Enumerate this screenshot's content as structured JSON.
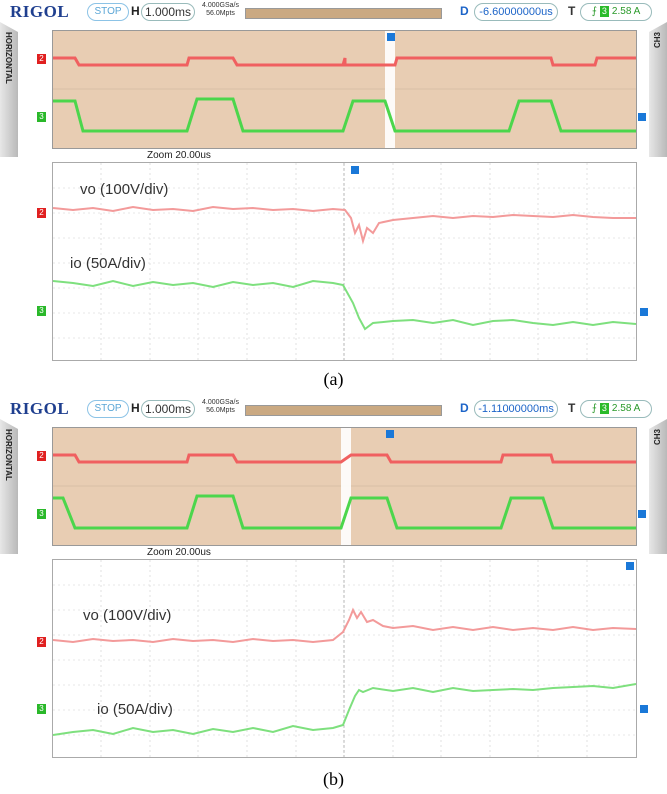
{
  "panels": [
    {
      "brand": "RIGOL",
      "run_state": "STOP",
      "h_label": "H",
      "timebase": "1.000ms",
      "sample_rate": "4.000GSa/s",
      "mem_depth": "56.0Mpts",
      "delay_label": "D",
      "delay": "-6.60000000us",
      "trigger_label": "T",
      "trigger_channel": "3",
      "trigger_level": "2.58 A",
      "side_left": "HORIZONTAL",
      "side_right": "CH3",
      "zoom_label": "Zoom  20.00us",
      "annotation_vo": "vo (100V/div)",
      "annotation_io": "io (50A/div)",
      "caption": "(a)",
      "ch2": "2",
      "ch3": "3",
      "trig_marker": "T",
      "response": "voltage dip, current drop"
    },
    {
      "brand": "RIGOL",
      "run_state": "STOP",
      "h_label": "H",
      "timebase": "1.000ms",
      "sample_rate": "4.000GSa/s",
      "mem_depth": "56.0Mpts",
      "delay_label": "D",
      "delay": "-1.11000000ms",
      "trigger_label": "T",
      "trigger_channel": "3",
      "trigger_level": "2.58 A",
      "side_left": "HORIZONTAL",
      "side_right": "CH3",
      "zoom_label": "Zoom  20.00us",
      "annotation_vo": "vo (100V/div)",
      "annotation_io": "io (50A/div)",
      "caption": "(b)",
      "ch2": "2",
      "ch3": "3",
      "trig_marker": "T",
      "response": "voltage overshoot, current rise"
    }
  ],
  "colors": {
    "voltage_trace": "#f08a8a",
    "current_trace": "#5cdc5c",
    "overview_bg": "#e8cdb3",
    "brand": "#1f3f8f",
    "delay": "#1c64c8"
  }
}
